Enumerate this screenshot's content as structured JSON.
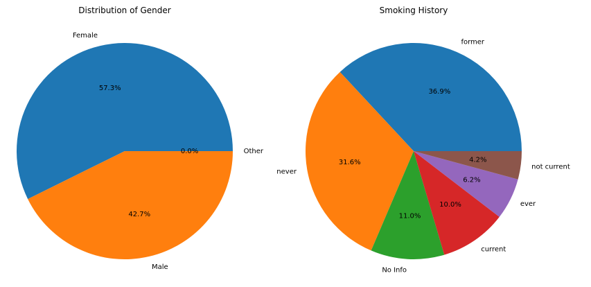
{
  "chart_data": [
    {
      "type": "pie",
      "title": "Distribution of Gender",
      "categories": [
        "Female",
        "Male",
        "Other"
      ],
      "values": [
        57.3,
        42.7,
        0.0
      ],
      "labels": [
        "57.3%",
        "42.7%",
        "0.0%"
      ],
      "colors": [
        "#1f77b4",
        "#ff7f0e",
        "#2ca02c"
      ],
      "legend": "none"
    },
    {
      "type": "pie",
      "title": "Smoking History",
      "categories": [
        "former",
        "never",
        "No Info",
        "current",
        "ever",
        "not current"
      ],
      "values": [
        36.9,
        31.6,
        11.0,
        10.0,
        6.2,
        4.2
      ],
      "labels": [
        "36.9%",
        "31.6%",
        "11.0%",
        "10.0%",
        "6.2%",
        "4.2%"
      ],
      "colors": [
        "#1f77b4",
        "#ff7f0e",
        "#2ca02c",
        "#d62728",
        "#9467bd",
        "#8c564b"
      ],
      "legend": "none"
    }
  ]
}
